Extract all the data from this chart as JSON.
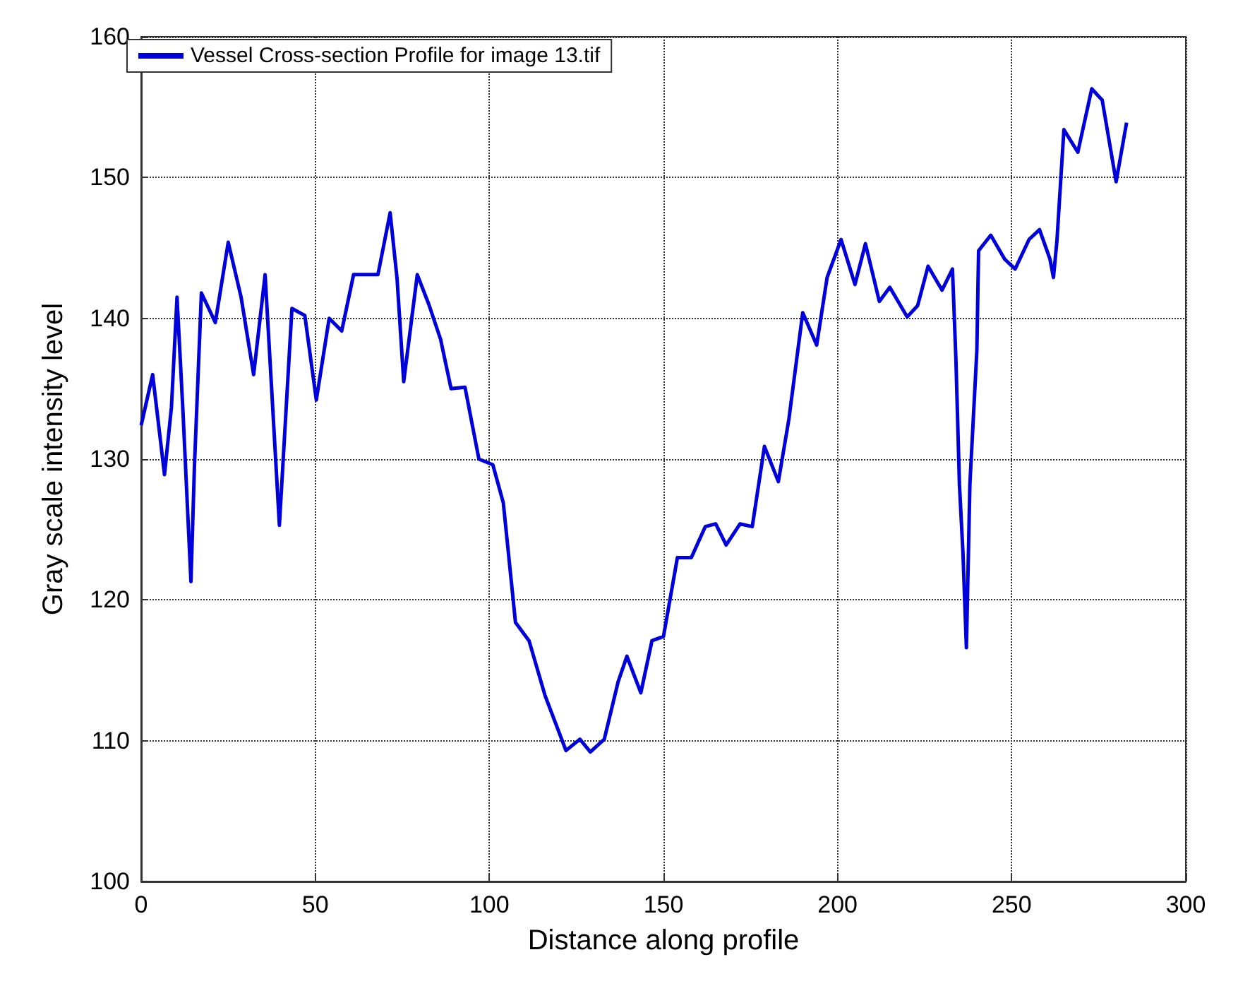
{
  "chart_data": {
    "type": "line",
    "xlabel": "Distance along profile",
    "ylabel": "Gray scale intensity level",
    "xlim": [
      0,
      300
    ],
    "xticks": [
      0,
      50,
      100,
      150,
      200,
      250,
      300
    ],
    "ylim": [
      100,
      160
    ],
    "yticks": [
      100,
      110,
      120,
      130,
      140,
      150,
      160
    ],
    "grid": true,
    "legend": "top left",
    "line_style": "solid",
    "marker": "none",
    "series": [
      {
        "name": "Vessel Cross-section Profile for image 13.tif",
        "color": "#0000dd",
        "x": [
          0,
          3.3,
          6.7,
          8.7,
          10.3,
          12,
          14.3,
          15.3,
          17.3,
          21.3,
          25,
          28.7,
          32.3,
          35.6,
          39.7,
          43.3,
          47,
          50.3,
          54,
          57.6,
          61,
          66,
          68,
          71.5,
          73.5,
          75.4,
          79.3,
          82.6,
          86,
          89,
          93,
          97,
          101,
          104,
          107.5,
          111.4,
          116,
          122,
          126,
          129,
          133,
          137,
          139.5,
          143.5,
          146.7,
          150,
          154,
          158,
          162,
          165,
          168,
          172,
          175.5,
          179,
          183,
          186,
          190,
          194,
          197,
          201,
          205,
          208,
          212,
          215,
          220,
          223,
          226,
          230,
          233,
          234,
          235,
          236,
          237,
          238,
          240,
          240.5,
          244,
          248,
          251,
          255,
          258,
          261,
          262,
          263,
          265,
          269,
          273,
          276,
          280,
          283
        ],
        "values": [
          132.4,
          136,
          128.9,
          133.7,
          141.5,
          133.4,
          121.3,
          129.5,
          141.8,
          139.7,
          145.4,
          141.5,
          136,
          143.1,
          125.3,
          140.7,
          140.2,
          134.2,
          140,
          139.1,
          143.1,
          143.1,
          143.1,
          147.5,
          142.8,
          135.5,
          143.1,
          141,
          138.5,
          135,
          135.1,
          130,
          129.6,
          126.9,
          118.4,
          117.1,
          113.2,
          109.3,
          110.1,
          109.2,
          110.1,
          114.2,
          116,
          113.4,
          117.1,
          117.4,
          123,
          123,
          125.2,
          125.4,
          123.9,
          125.4,
          125.2,
          130.9,
          128.4,
          132.8,
          140.4,
          138.1,
          142.9,
          145.6,
          142.4,
          145.3,
          141.2,
          142.2,
          140.1,
          140.9,
          143.7,
          142,
          143.5,
          137,
          128.2,
          123.4,
          116.6,
          128.2,
          137.7,
          144.8,
          145.9,
          144.2,
          143.5,
          145.6,
          146.3,
          144.2,
          142.9,
          145.5,
          153.4,
          151.8,
          156.3,
          155.5,
          149.7,
          153.9
        ]
      }
    ]
  }
}
